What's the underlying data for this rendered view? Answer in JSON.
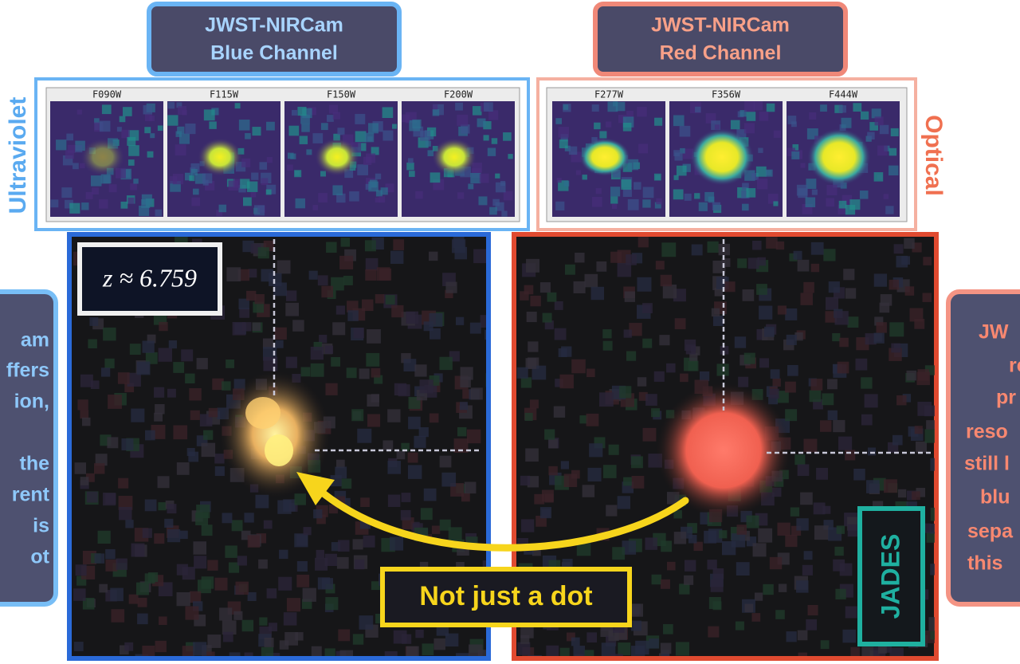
{
  "blue_channel": {
    "title": [
      "JWST-NIRCam",
      "Blue Channel"
    ],
    "filters": [
      "F090W",
      "F115W",
      "F150W",
      "F200W"
    ],
    "label": "Ultraviolet"
  },
  "red_channel": {
    "title": [
      "JWST-NIRCam",
      "Red Channel"
    ],
    "filters": [
      "F277W",
      "F356W",
      "F444W"
    ],
    "label": "Optical"
  },
  "redshift_label": "z ≈ 6.759",
  "callout": "Not just a dot",
  "survey": "JADES",
  "left_note": [
    "am",
    "ffers",
    "ion,",
    "the",
    "rent",
    "is",
    "ot"
  ],
  "right_note": [
    "JW",
    "re",
    "pr",
    "reso",
    "still l",
    "blu",
    "sepa",
    "this"
  ]
}
